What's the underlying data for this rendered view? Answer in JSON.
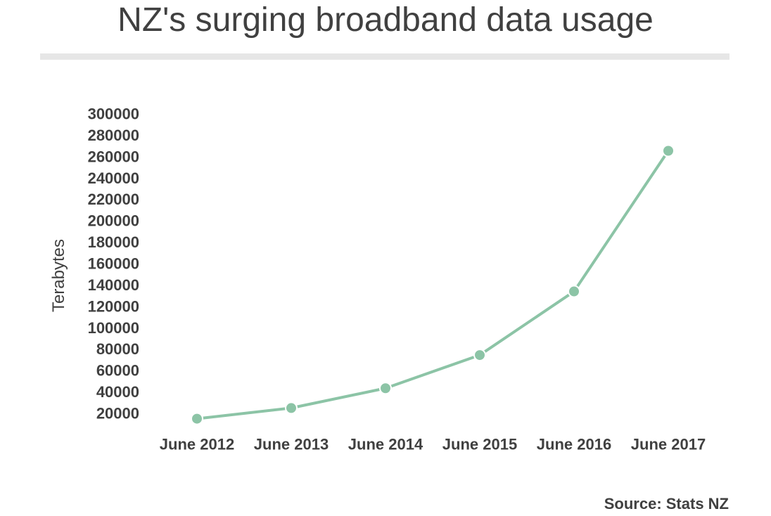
{
  "header": {
    "title": "NZ's surging broadband data usage"
  },
  "footer": {
    "source": "Source: Stats NZ"
  },
  "colors": {
    "line": "#8cc4a6",
    "divider": "#e6e6e6",
    "text": "#404040"
  },
  "chart_data": {
    "type": "line",
    "title": "NZ's surging broadband data usage",
    "xlabel": "",
    "ylabel": "Terabytes",
    "categories": [
      "June 2012",
      "June 2013",
      "June 2014",
      "June 2015",
      "June 2016",
      "June 2017"
    ],
    "series": [
      {
        "values": [
          15000,
          25000,
          43500,
          74500,
          134000,
          265500
        ]
      }
    ],
    "yticks": [
      20000,
      40000,
      60000,
      80000,
      100000,
      120000,
      140000,
      160000,
      180000,
      200000,
      220000,
      240000,
      260000,
      280000,
      300000
    ],
    "ylim": [
      20000,
      300000
    ],
    "grid": false,
    "legend": "none"
  }
}
